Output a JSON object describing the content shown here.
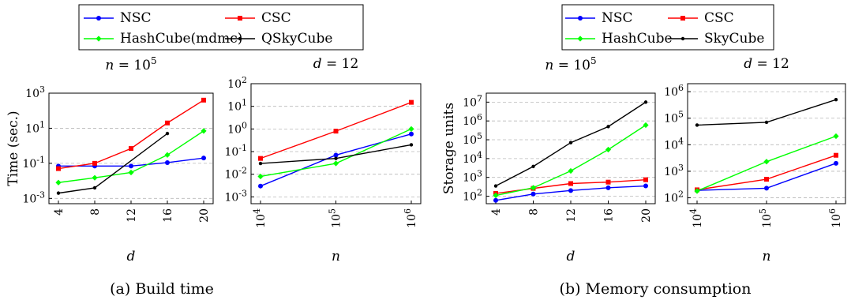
{
  "figure": {
    "caption_a": "(a)  Build time",
    "caption_b": "(b)  Memory consumption",
    "legend_a": [
      "NSC",
      "CSC",
      "HashCube(mdmc)",
      "QSkyCube"
    ],
    "legend_b": [
      "NSC",
      "CSC",
      "HashCube",
      "SkyCube"
    ],
    "colors": {
      "NSC": "#0000ff",
      "CSC": "#ff0000",
      "HashCube": "#00ff00",
      "SkyCube": "#000000"
    }
  },
  "chart_data": [
    {
      "type": "line",
      "panel": "build-time-vs-d",
      "title": "n = 10^5",
      "xlabel": "d",
      "ylabel": "Time (sec.)",
      "yscale": "log",
      "ylim": [
        0.0005,
        1000
      ],
      "yticks": [
        "10^-3",
        "10^-1",
        "10^1",
        "10^3"
      ],
      "x": [
        4,
        8,
        12,
        16,
        20
      ],
      "grid": "horizontal dashed",
      "series": [
        {
          "name": "NSC",
          "values": [
            0.07,
            0.07,
            0.07,
            0.11,
            0.2
          ]
        },
        {
          "name": "CSC",
          "values": [
            0.05,
            0.1,
            0.7,
            20,
            400
          ]
        },
        {
          "name": "HashCube(mdmc)",
          "values": [
            0.008,
            0.015,
            0.03,
            0.3,
            7
          ]
        },
        {
          "name": "QSkyCube",
          "values": [
            0.002,
            0.004,
            null,
            5,
            null
          ]
        }
      ]
    },
    {
      "type": "line",
      "panel": "build-time-vs-n",
      "title": "d = 12",
      "xlabel": "n",
      "ylabel": "",
      "yscale": "log",
      "xscale": "log",
      "ylim": [
        0.0005,
        100
      ],
      "yticks": [
        "10^-3",
        "10^-2",
        "10^-1",
        "10^0",
        "10^1",
        "10^2"
      ],
      "x": [
        "10^4",
        "10^5",
        "10^6"
      ],
      "grid": "horizontal dashed",
      "series": [
        {
          "name": "NSC",
          "values": [
            0.003,
            0.07,
            0.6
          ]
        },
        {
          "name": "CSC",
          "values": [
            0.05,
            0.8,
            15
          ]
        },
        {
          "name": "HashCube(mdmc)",
          "values": [
            0.008,
            0.03,
            1
          ]
        },
        {
          "name": "QSkyCube",
          "values": [
            0.03,
            0.05,
            0.2
          ]
        }
      ]
    },
    {
      "type": "line",
      "panel": "memory-vs-d",
      "title": "n = 10^5",
      "xlabel": "d",
      "ylabel": "Storage units",
      "yscale": "log",
      "ylim": [
        40,
        30000000
      ],
      "yticks": [
        "10^2",
        "10^3",
        "10^4",
        "10^5",
        "10^6",
        "10^7"
      ],
      "x": [
        4,
        8,
        12,
        16,
        20
      ],
      "grid": "horizontal dashed",
      "series": [
        {
          "name": "NSC",
          "values": [
            60,
            130,
            200,
            280,
            350
          ]
        },
        {
          "name": "CSC",
          "values": [
            140,
            260,
            470,
            560,
            750
          ]
        },
        {
          "name": "HashCube",
          "values": [
            110,
            280,
            2200,
            30000,
            600000
          ]
        },
        {
          "name": "SkyCube",
          "values": [
            350,
            3800,
            70000,
            500000,
            10000000
          ]
        }
      ]
    },
    {
      "type": "line",
      "panel": "memory-vs-n",
      "title": "d = 12",
      "xlabel": "n",
      "ylabel": "",
      "yscale": "log",
      "xscale": "log",
      "ylim": [
        60,
        2000000
      ],
      "yticks": [
        "10^2",
        "10^3",
        "10^4",
        "10^5",
        "10^6"
      ],
      "x": [
        "10^4",
        "10^5",
        "10^6"
      ],
      "grid": "horizontal dashed",
      "series": [
        {
          "name": "NSC",
          "values": [
            190,
            230,
            2000
          ]
        },
        {
          "name": "CSC",
          "values": [
            200,
            500,
            4000
          ]
        },
        {
          "name": "HashCube",
          "values": [
            180,
            2300,
            21000
          ]
        },
        {
          "name": "SkyCube",
          "values": [
            55000,
            70000,
            500000
          ]
        }
      ]
    }
  ]
}
